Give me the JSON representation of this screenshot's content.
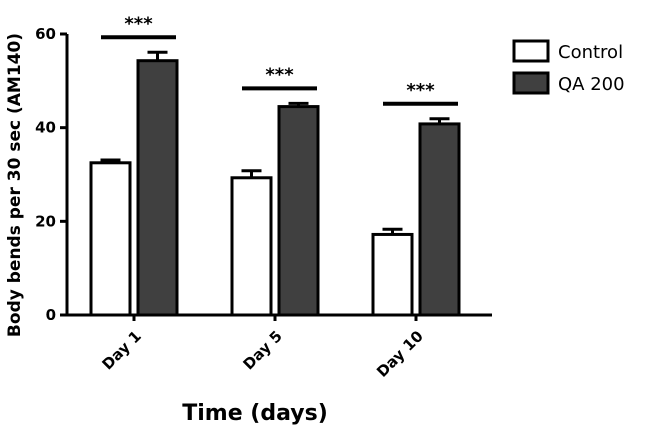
{
  "chart_data": {
    "type": "bar",
    "xlabel": "Time (days)",
    "ylabel": "Body bends per 30 sec (AM140)",
    "ylim": [
      0,
      60
    ],
    "yticks": [
      "0",
      "20",
      "40",
      "60"
    ],
    "categories": [
      "Day 1",
      "Day 5",
      "Day 10"
    ],
    "series": [
      {
        "name": "Control",
        "values": [
          32.5,
          29.3,
          17.2
        ],
        "errors": [
          0.6,
          1.5,
          1.1
        ],
        "color": "#ffffff"
      },
      {
        "name": "QA 200",
        "values": [
          54.3,
          44.5,
          40.8
        ],
        "errors": [
          1.8,
          0.7,
          1.1
        ],
        "color": "#404040"
      }
    ],
    "significance": [
      "***",
      "***",
      "***"
    ],
    "legend_position": "top-right",
    "grid": false
  }
}
